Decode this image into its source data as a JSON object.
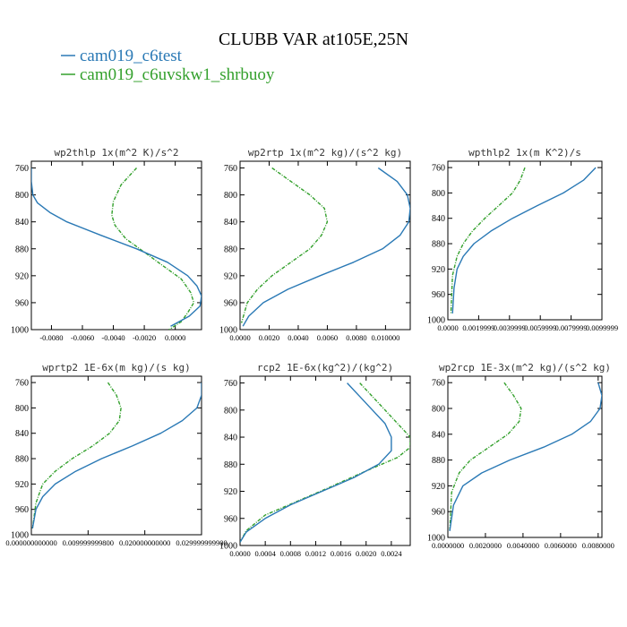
{
  "figure": {
    "title": "CLUBB VAR at105E,25N",
    "legend": [
      {
        "label": "cam019_c6test",
        "color": "#2a79b5"
      },
      {
        "label": "cam019_c6uvskw1_shrbuoy",
        "color": "#33a02c"
      }
    ]
  },
  "chart_data": [
    {
      "type": "line",
      "title": "wp2thlp  1x(m^2 K)/s^2",
      "y_reversed": true,
      "ylim": [
        1000,
        750
      ],
      "yticks": [
        760,
        800,
        840,
        880,
        920,
        960,
        1000
      ],
      "ytick_labels": [
        "760",
        "800",
        "840",
        "880",
        "920",
        "960",
        "1000"
      ],
      "xlim": [
        -0.0093,
        0.0017
      ],
      "xticks": [
        -0.008,
        -0.006,
        -0.004,
        -0.002,
        0.0
      ],
      "xtick_labels": [
        "-0.0080",
        "-0.0060",
        "-0.0040",
        "-0.0020",
        "0.0000"
      ],
      "series": [
        {
          "name": "cam019_c6test",
          "color": "#2a79b5",
          "dashed": false,
          "x": [
            -0.0093,
            -0.0093,
            -0.0092,
            -0.0089,
            -0.0081,
            -0.007,
            -0.0048,
            -0.0025,
            -0.0005,
            0.0008,
            0.0014,
            0.0017,
            0.0016,
            0.0009,
            -0.0003
          ],
          "y": [
            760,
            780,
            800,
            812,
            826,
            840,
            860,
            880,
            900,
            920,
            935,
            950,
            965,
            980,
            995
          ]
        },
        {
          "name": "cam019_c6uvskw1_shrbuoy",
          "color": "#33a02c",
          "dashed": true,
          "x": [
            -0.0025,
            -0.0035,
            -0.004,
            -0.0041,
            -0.0039,
            -0.0032,
            -0.002,
            -0.0008,
            0.0004,
            0.001,
            0.0012,
            0.0008,
            0.0004,
            -0.0004
          ],
          "y": [
            760,
            785,
            810,
            830,
            845,
            865,
            885,
            905,
            925,
            945,
            960,
            975,
            988,
            1000
          ]
        }
      ]
    },
    {
      "type": "line",
      "title": "wp2rtp  1x(m^2 kg)/(s^2 kg)",
      "y_reversed": true,
      "ylim": [
        1000,
        750
      ],
      "yticks": [
        760,
        800,
        840,
        880,
        920,
        960,
        1000
      ],
      "ytick_labels": [
        "760",
        "800",
        "840",
        "880",
        "920",
        "960",
        "1000"
      ],
      "xlim": [
        0.0,
        0.0117
      ],
      "xticks": [
        0.0,
        0.002,
        0.004,
        0.006,
        0.008,
        0.01
      ],
      "xtick_labels": [
        "0.0000",
        "0.0020",
        "0.0040",
        "0.0060",
        "0.0080",
        "0.010000"
      ],
      "series": [
        {
          "name": "cam019_c6test",
          "color": "#2a79b5",
          "dashed": false,
          "x": [
            0.0095,
            0.0108,
            0.0115,
            0.0117,
            0.0116,
            0.011,
            0.0098,
            0.0078,
            0.0055,
            0.0033,
            0.0016,
            0.0006,
            0.0002
          ],
          "y": [
            760,
            780,
            800,
            820,
            840,
            860,
            880,
            900,
            920,
            940,
            960,
            980,
            995
          ]
        },
        {
          "name": "cam019_c6uvskw1_shrbuoy",
          "color": "#33a02c",
          "dashed": true,
          "x": [
            0.0022,
            0.0035,
            0.0048,
            0.0058,
            0.006,
            0.0056,
            0.0048,
            0.0035,
            0.0022,
            0.0012,
            0.0005,
            0.0001
          ],
          "y": [
            760,
            780,
            800,
            820,
            840,
            860,
            880,
            900,
            920,
            940,
            960,
            990
          ]
        }
      ]
    },
    {
      "type": "line",
      "title": "wpthlp2  1x(m K^2)/s",
      "y_reversed": true,
      "ylim": [
        1000,
        750
      ],
      "yticks": [
        760,
        800,
        840,
        880,
        920,
        960,
        1000
      ],
      "ytick_labels": [
        "760",
        "800",
        "840",
        "880",
        "920",
        "960",
        "1000"
      ],
      "xlim": [
        0.0,
        0.01
      ],
      "xticks": [
        0.0,
        0.002,
        0.004,
        0.006,
        0.008,
        0.01
      ],
      "xtick_labels": [
        "0.0000",
        "0.0019999",
        "0.0039999",
        "0.0059999",
        "0.0079999",
        "0.0099999"
      ],
      "series": [
        {
          "name": "cam019_c6test",
          "color": "#2a79b5",
          "dashed": false,
          "x": [
            0.0096,
            0.0088,
            0.0075,
            0.0058,
            0.0042,
            0.0028,
            0.0017,
            0.001,
            0.0006,
            0.0004,
            0.0003
          ],
          "y": [
            760,
            780,
            800,
            820,
            840,
            860,
            880,
            900,
            920,
            950,
            990
          ]
        },
        {
          "name": "cam019_c6uvskw1_shrbuoy",
          "color": "#33a02c",
          "dashed": true,
          "x": [
            0.005,
            0.0047,
            0.0042,
            0.0033,
            0.0024,
            0.0016,
            0.001,
            0.0006,
            0.0003,
            0.0002
          ],
          "y": [
            760,
            780,
            800,
            820,
            840,
            860,
            880,
            900,
            930,
            990
          ]
        }
      ]
    },
    {
      "type": "line",
      "title": "wprtp2  1E-6x(m kg)/(s kg)",
      "y_reversed": true,
      "ylim": [
        1000,
        750
      ],
      "yticks": [
        760,
        800,
        840,
        880,
        920,
        960,
        1000
      ],
      "ytick_labels": [
        "760",
        "800",
        "840",
        "880",
        "920",
        "960",
        "1000"
      ],
      "xlim": [
        0.0,
        0.03
      ],
      "xticks": [
        0.0,
        0.01,
        0.02,
        0.03
      ],
      "xtick_labels": [
        "0.000000000000",
        "0.009999999800",
        "0.020000000000",
        "0.029999999900"
      ],
      "series": [
        {
          "name": "cam019_c6test",
          "color": "#2a79b5",
          "dashed": false,
          "x": [
            0.03,
            0.03,
            0.0292,
            0.0266,
            0.0228,
            0.0178,
            0.0124,
            0.0078,
            0.0042,
            0.002,
            0.0008,
            0.0002
          ],
          "y": [
            760,
            780,
            800,
            820,
            840,
            860,
            880,
            900,
            920,
            940,
            960,
            990
          ]
        },
        {
          "name": "cam019_c6uvskw1_shrbuoy",
          "color": "#33a02c",
          "dashed": true,
          "x": [
            0.0135,
            0.015,
            0.0158,
            0.0155,
            0.0138,
            0.0108,
            0.0072,
            0.0042,
            0.002,
            0.0008,
            0.0002
          ],
          "y": [
            760,
            780,
            800,
            820,
            840,
            860,
            880,
            900,
            920,
            950,
            990
          ]
        }
      ]
    },
    {
      "type": "line",
      "title": "rcp2  1E-6x(kg^2)/(kg^2)",
      "y_reversed": true,
      "ylim": [
        1000,
        750
      ],
      "yticks": [
        760,
        800,
        840,
        880,
        920,
        960,
        1000
      ],
      "ytick_labels": [
        "760",
        "800",
        "840",
        "880",
        "920",
        "960",
        "1000"
      ],
      "xlim": [
        0.0,
        0.0027
      ],
      "xticks": [
        0.0,
        0.0004,
        0.0008,
        0.0012,
        0.0016,
        0.002,
        0.0024
      ],
      "xtick_labels": [
        "0.0000",
        "0.0004",
        "0.0008",
        "0.0012",
        "0.0016",
        "0.0020",
        "0.0024"
      ],
      "series": [
        {
          "name": "cam019_c6test",
          "color": "#2a79b5",
          "dashed": false,
          "x": [
            0.0017,
            0.0019,
            0.0021,
            0.0023,
            0.0024,
            0.0024,
            0.0022,
            0.0018,
            0.0013,
            0.0008,
            0.0004,
            0.0001,
            0.0
          ],
          "y": [
            760,
            780,
            800,
            820,
            840,
            860,
            880,
            900,
            920,
            940,
            960,
            980,
            995
          ]
        },
        {
          "name": "cam019_c6uvskw1_shrbuoy",
          "color": "#33a02c",
          "dashed": true,
          "x": [
            0.0019,
            0.0021,
            0.0023,
            0.0025,
            0.0027,
            0.0027,
            0.0025,
            0.002,
            0.0014,
            0.0009,
            0.0004,
            0.0001,
            0.0
          ],
          "y": [
            760,
            780,
            800,
            820,
            840,
            855,
            870,
            890,
            915,
            935,
            955,
            978,
            995
          ]
        }
      ]
    },
    {
      "type": "line",
      "title": "wp2rcp  1E-3x(m^2 kg)/(s^2 kg)",
      "y_reversed": true,
      "ylim": [
        1000,
        750
      ],
      "yticks": [
        760,
        800,
        840,
        880,
        920,
        960,
        1000
      ],
      "ytick_labels": [
        "760",
        "800",
        "840",
        "880",
        "920",
        "960",
        "1000"
      ],
      "xlim": [
        0.0,
        0.0082
      ],
      "xticks": [
        0.0,
        0.002,
        0.004,
        0.006,
        0.008
      ],
      "xtick_labels": [
        "0.0000000",
        "0.0020000",
        "0.0040000",
        "0.0060000",
        "0.0080000"
      ],
      "series": [
        {
          "name": "cam019_c6test",
          "color": "#2a79b5",
          "dashed": false,
          "x": [
            0.008,
            0.0082,
            0.0081,
            0.0076,
            0.0066,
            0.0051,
            0.0033,
            0.0018,
            0.0008,
            0.0003,
            0.0001
          ],
          "y": [
            760,
            780,
            800,
            820,
            840,
            860,
            880,
            900,
            920,
            950,
            990
          ]
        },
        {
          "name": "cam019_c6uvskw1_shrbuoy",
          "color": "#33a02c",
          "dashed": true,
          "x": [
            0.003,
            0.0035,
            0.0039,
            0.0038,
            0.0032,
            0.0022,
            0.0012,
            0.0006,
            0.0002,
            0.0001
          ],
          "y": [
            760,
            780,
            800,
            820,
            840,
            860,
            880,
            900,
            930,
            990
          ]
        }
      ]
    }
  ]
}
